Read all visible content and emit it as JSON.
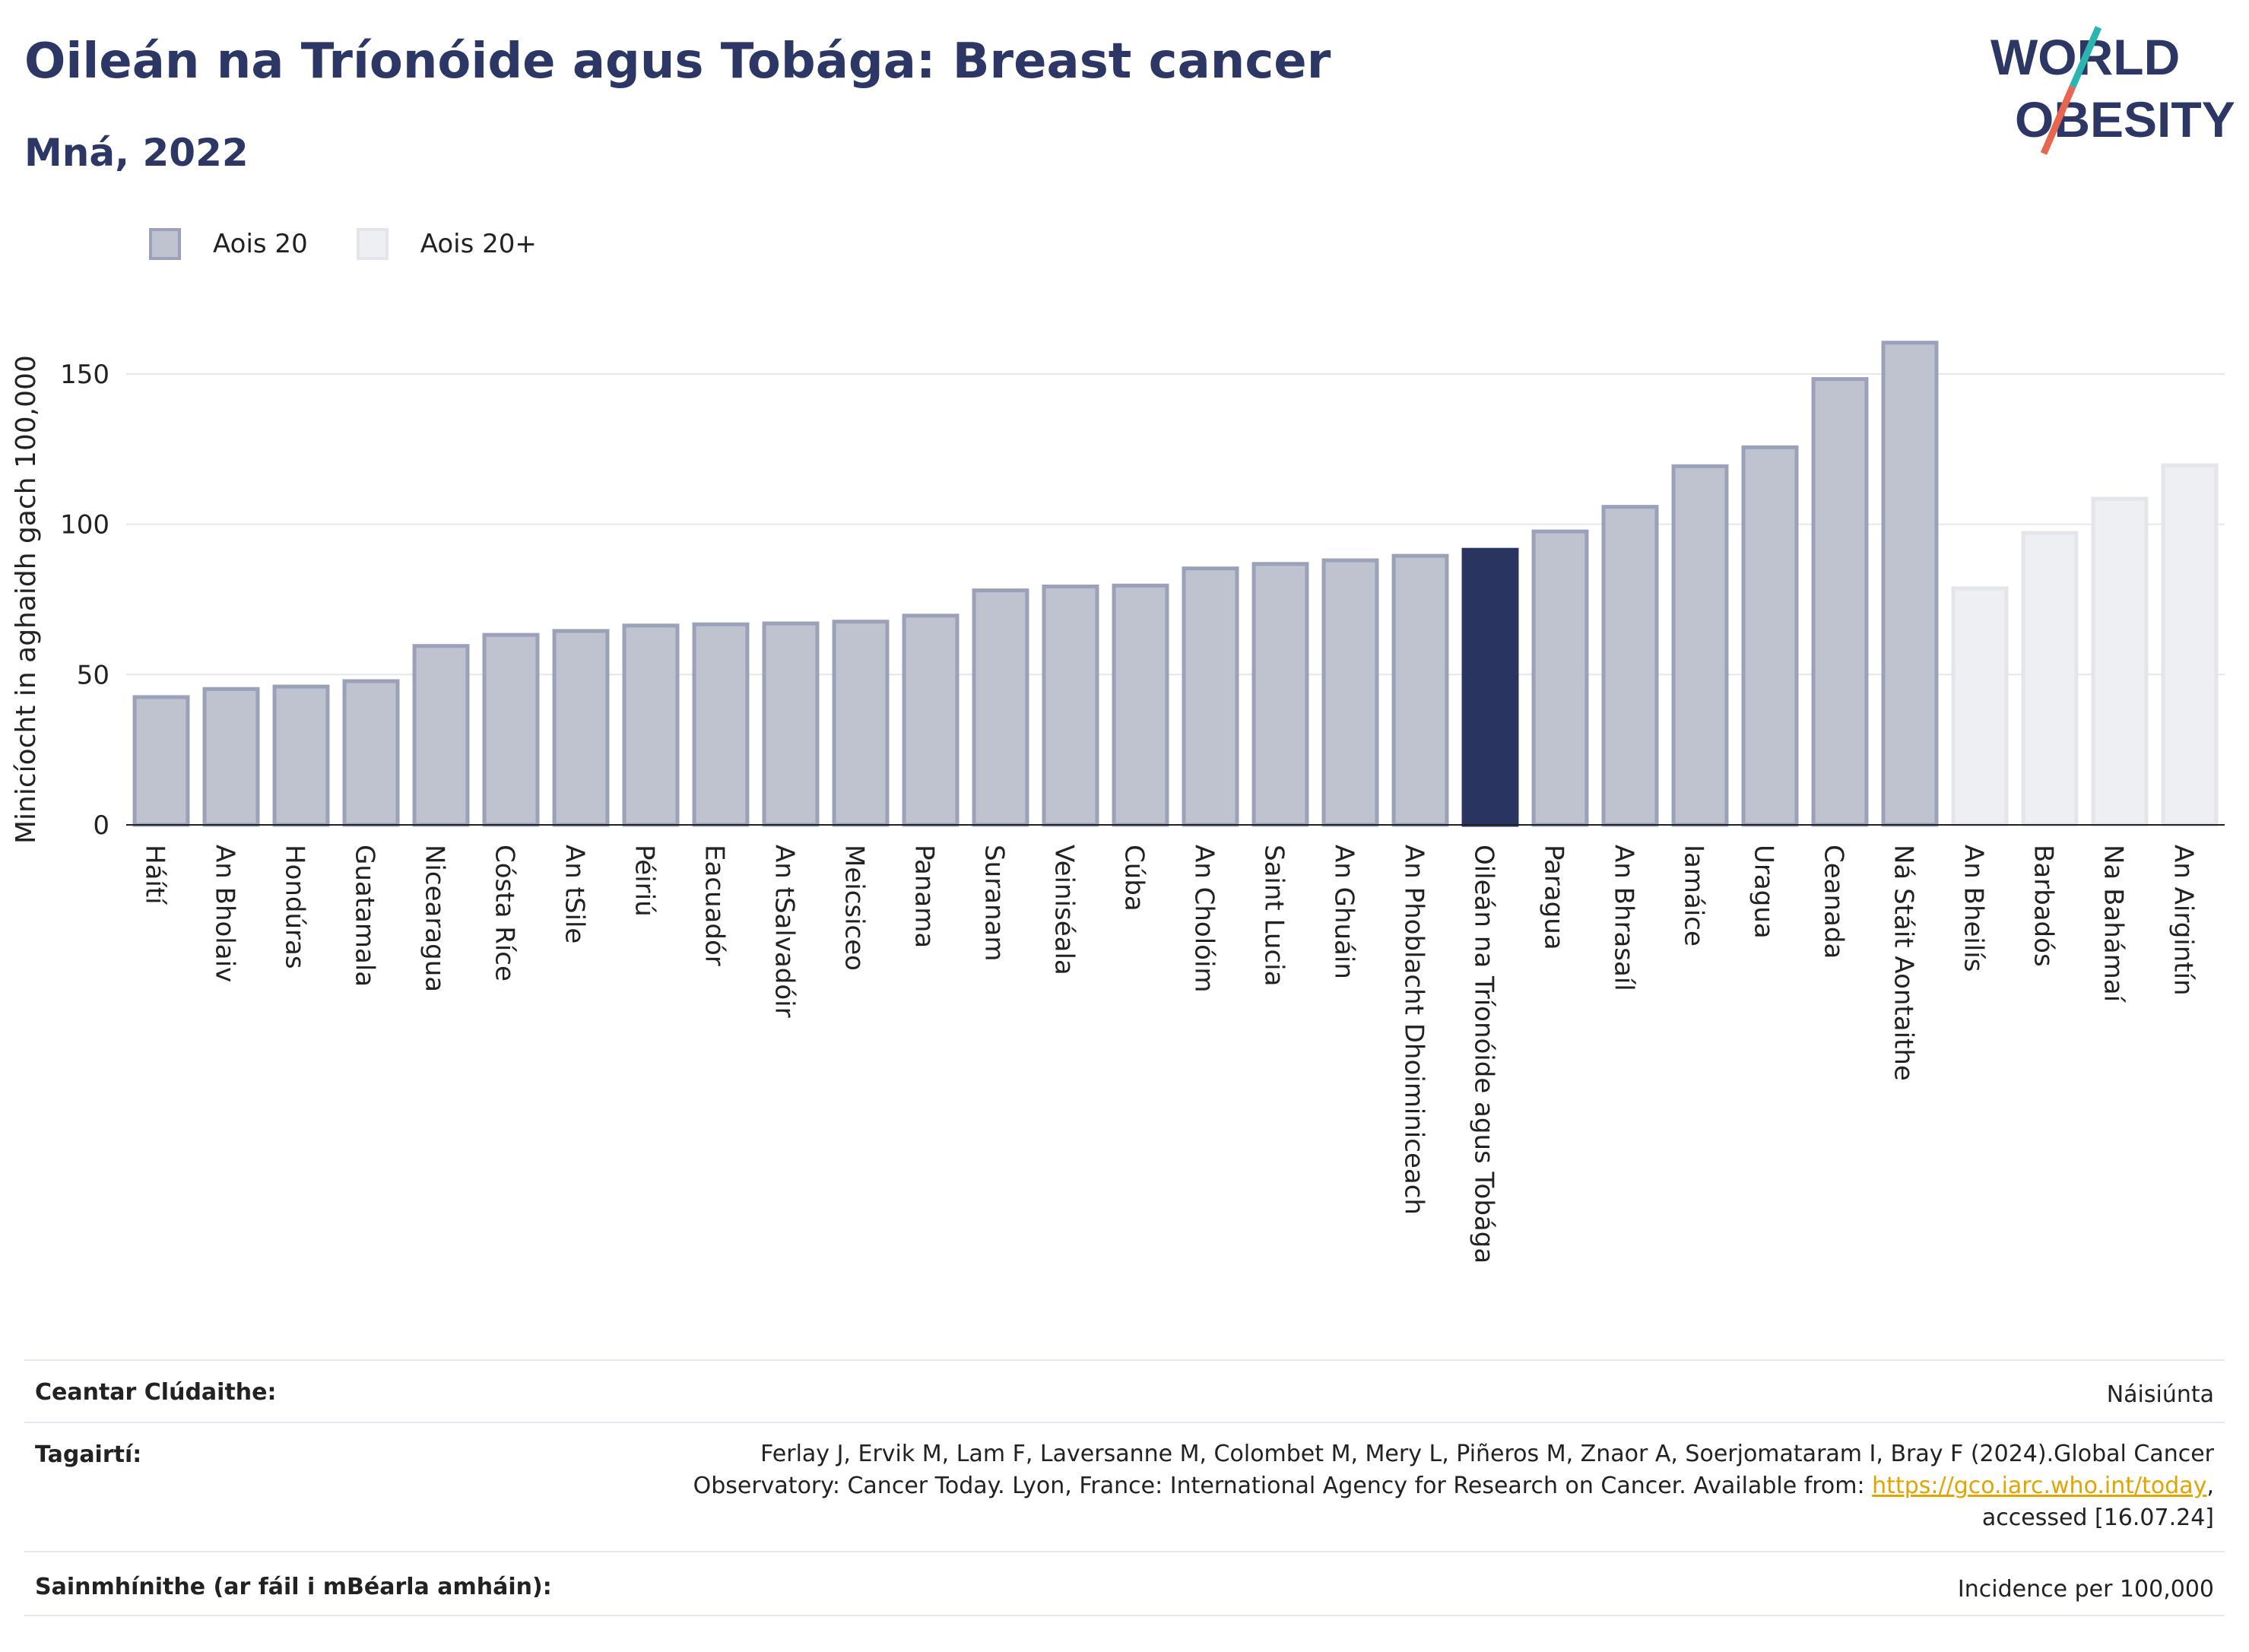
{
  "title": "Oileán na Tríonóide agus Tobága: Breast cancer",
  "subtitle": "Mná, 2022",
  "logo": {
    "line1": "WORLD",
    "line2": "OBESITY"
  },
  "legend": [
    {
      "label": "Aois 20"
    },
    {
      "label": "Aois 20+"
    }
  ],
  "colors": {
    "series_a_fill": "#bfc3d0",
    "series_a_stroke": "#9aa1b8",
    "series_b_fill": "#eeeff3",
    "series_b_stroke": "#e3e5eb",
    "highlight": "#2a3460",
    "accent_teal": "#2ab5b0",
    "accent_red": "#e8664f"
  },
  "chart_data": {
    "type": "bar",
    "ylabel": "Minicíocht in aghaidh gach 100,000",
    "ylim": [
      0,
      175
    ],
    "yticks": [
      0,
      50,
      100,
      150
    ],
    "grid": true,
    "legend_position": "top-left",
    "highlight": "Oileán na Tríonóide agus Tobága",
    "categories": [
      "Háítí",
      "An Bholaiv",
      "Hondúras",
      "Guatamala",
      "Nicearagua",
      "Cósta Ríce",
      "An tSile",
      "Péiriú",
      "Eacuadór",
      "An tSalvadóir",
      "Meicsiceo",
      "Panama",
      "Suranam",
      "Veiniséala",
      "Cúba",
      "An Cholóim",
      "Saint Lucia",
      "An Ghuáin",
      "An Phoblacht Dhoiminiceach",
      "Oileán na Tríonóide agus Tobága",
      "Paragua",
      "An Bhrasaíl",
      "Iamáice",
      "Uragua",
      "Ceanada",
      "Ná Stáit Aontaithe",
      "An Bheilís",
      "Barbadós",
      "Na Bahámaí",
      "An Airgintín"
    ],
    "series": [
      {
        "name": "Aois 20",
        "values": [
          42.5,
          45.2,
          46.0,
          47.8,
          59.5,
          63.2,
          64.5,
          66.3,
          66.7,
          67.0,
          67.6,
          69.6,
          78.0,
          79.3,
          79.6,
          85.3,
          86.8,
          88.0,
          89.5,
          91.5,
          97.6,
          105.8,
          119.3,
          125.6,
          148.3,
          160.4,
          null,
          null,
          null,
          null
        ]
      },
      {
        "name": "Aois 20+",
        "values": [
          null,
          null,
          null,
          null,
          null,
          null,
          null,
          null,
          null,
          null,
          null,
          null,
          null,
          null,
          null,
          null,
          null,
          null,
          null,
          null,
          null,
          null,
          null,
          null,
          null,
          null,
          78.7,
          97.1,
          108.5,
          119.6
        ]
      }
    ]
  },
  "footer": {
    "coverage_label": "Ceantar Clúdaithe:",
    "coverage_value": "Náisiúnta",
    "references_label": "Tagairtí:",
    "references_line1": "Ferlay J, Ervik M, Lam F, Laversanne M, Colombet M, Mery L, Piñeros M, Znaor A, Soerjomataram I, Bray F (2024).Global Cancer",
    "references_line2_pre": "Observatory: Cancer Today. Lyon, France: International Agency for Research on Cancer. Available from: ",
    "references_link": "https://gco.iarc.who.int/today",
    "references_line2_post": ",",
    "references_line3": "accessed [16.07.24]",
    "definitions_label": "Sainmhínithe (ar fáil i mBéarla amháin):",
    "definitions_value": "Incidence per 100,000"
  }
}
